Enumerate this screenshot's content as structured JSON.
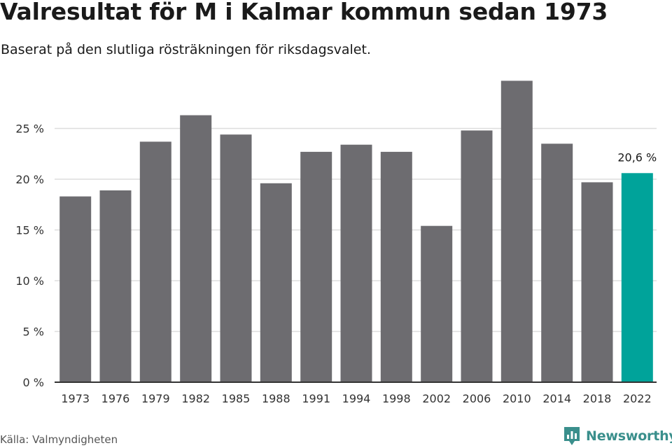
{
  "chart_data": {
    "type": "bar",
    "title": "Valresultat för M i Kalmar kommun sedan 1973",
    "subtitle": "Baserat på den slutliga rösträkningen för riksdagsvalet.",
    "xlabel": "",
    "ylabel": "",
    "categories": [
      "1973",
      "1976",
      "1979",
      "1982",
      "1985",
      "1988",
      "1991",
      "1994",
      "1998",
      "2002",
      "2006",
      "2010",
      "2014",
      "2018",
      "2022"
    ],
    "values": [
      18.3,
      18.9,
      23.7,
      26.3,
      24.4,
      19.6,
      22.7,
      23.4,
      22.7,
      15.4,
      24.8,
      29.7,
      23.5,
      19.7,
      20.6
    ],
    "ylim": [
      0,
      30
    ],
    "yticks": [
      0,
      5,
      10,
      15,
      20,
      25
    ],
    "ytick_labels": [
      "0 %",
      "5 %",
      "10 %",
      "15 %",
      "20 %",
      "25 %"
    ],
    "grid": true,
    "legend": "none",
    "highlight_index": 14,
    "annotation": "20,6 %",
    "colors": {
      "bar": "#6d6c70",
      "highlight": "#00a39a",
      "grid": "#dddddd",
      "axis": "#333333"
    }
  },
  "footer": {
    "source": "Källa: Valmyndigheten",
    "brand": "Newsworthy"
  }
}
